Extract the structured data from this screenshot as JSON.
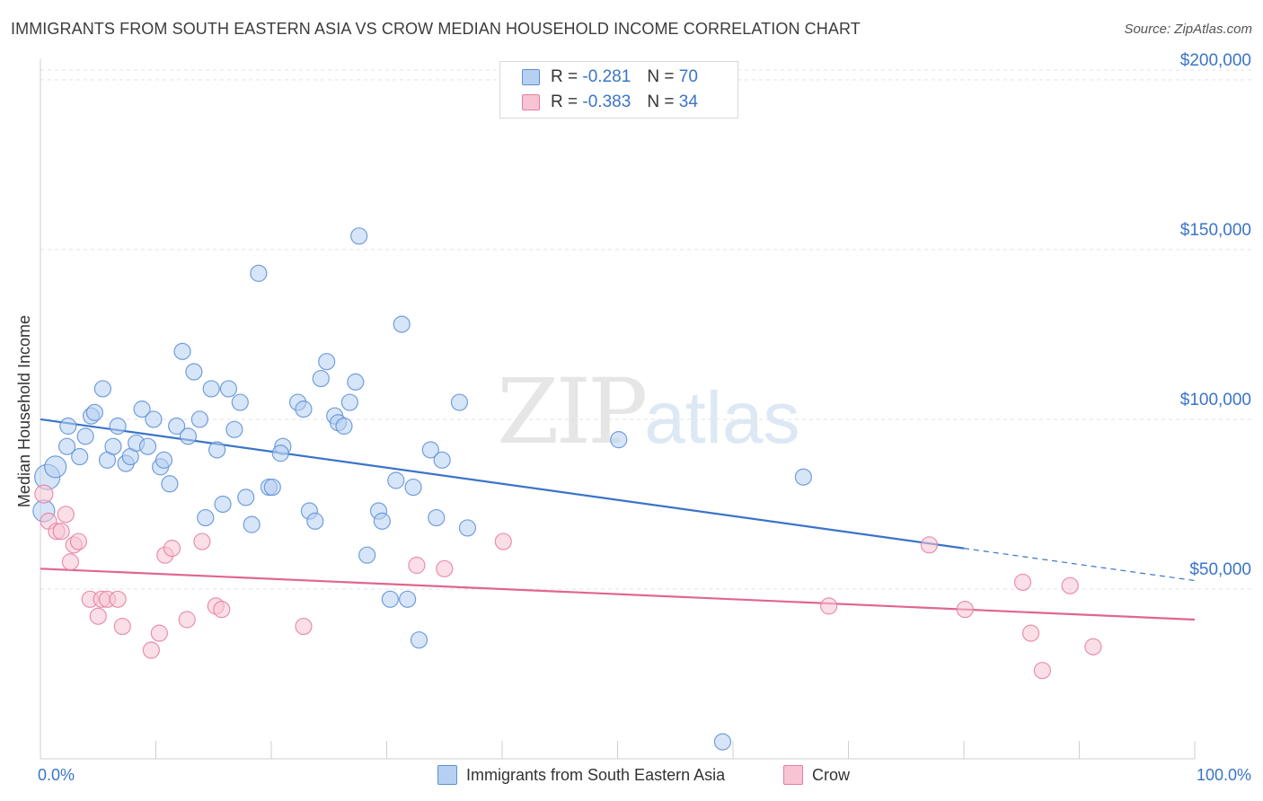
{
  "title": "IMMIGRANTS FROM SOUTH EASTERN ASIA VS CROW MEDIAN HOUSEHOLD INCOME CORRELATION CHART",
  "source": "Source: ZipAtlas.com",
  "watermark": {
    "zip": "ZIP",
    "atlas": "atlas"
  },
  "legend": {
    "r_label": "R =",
    "n_label": "N =",
    "series1": {
      "r": "-0.281",
      "n": "70"
    },
    "series2": {
      "r": "-0.383",
      "n": "34"
    }
  },
  "chart_data": {
    "type": "scatter",
    "title": "IMMIGRANTS FROM SOUTH EASTERN ASIA VS CROW MEDIAN HOUSEHOLD INCOME CORRELATION CHART",
    "xlabel": "",
    "ylabel": "Median Household Income",
    "xlim": [
      0,
      100
    ],
    "ylim": [
      0,
      205000
    ],
    "x_tick_labels": [
      "0.0%",
      "100.0%"
    ],
    "y_ticks": [
      50000,
      100000,
      150000,
      200000
    ],
    "y_tick_labels": [
      "$50,000",
      "$100,000",
      "$150,000",
      "$200,000"
    ],
    "grid": true,
    "colors": {
      "series1": "#5b8fd6",
      "series1_fill": "#b7d0f2",
      "series2": "#e57ea0",
      "series2_fill": "#f7c4d4",
      "trend1": "#3a74c9",
      "trend2": "#e06690"
    },
    "series": [
      {
        "name": "Immigrants from South Eastern Asia",
        "points": [
          [
            0.3,
            73000
          ],
          [
            0.6,
            83000
          ],
          [
            1.3,
            86000
          ],
          [
            2.3,
            92000
          ],
          [
            2.4,
            98000
          ],
          [
            3.4,
            89000
          ],
          [
            3.9,
            95000
          ],
          [
            4.4,
            101000
          ],
          [
            4.7,
            102000
          ],
          [
            5.4,
            109000
          ],
          [
            5.8,
            88000
          ],
          [
            6.3,
            92000
          ],
          [
            6.7,
            98000
          ],
          [
            7.4,
            87000
          ],
          [
            7.8,
            89000
          ],
          [
            8.3,
            93000
          ],
          [
            8.8,
            103000
          ],
          [
            9.3,
            92000
          ],
          [
            9.8,
            100000
          ],
          [
            10.4,
            86000
          ],
          [
            10.7,
            88000
          ],
          [
            11.2,
            81000
          ],
          [
            11.8,
            98000
          ],
          [
            12.3,
            120000
          ],
          [
            12.8,
            95000
          ],
          [
            13.3,
            114000
          ],
          [
            13.8,
            100000
          ],
          [
            14.3,
            71000
          ],
          [
            14.8,
            109000
          ],
          [
            15.3,
            91000
          ],
          [
            15.8,
            75000
          ],
          [
            16.3,
            109000
          ],
          [
            16.8,
            97000
          ],
          [
            17.3,
            105000
          ],
          [
            17.8,
            77000
          ],
          [
            18.3,
            69000
          ],
          [
            18.9,
            143000
          ],
          [
            19.8,
            80000
          ],
          [
            20.1,
            80000
          ],
          [
            21.0,
            92000
          ],
          [
            20.8,
            90000
          ],
          [
            22.3,
            105000
          ],
          [
            22.8,
            103000
          ],
          [
            23.3,
            73000
          ],
          [
            23.8,
            70000
          ],
          [
            24.3,
            112000
          ],
          [
            24.8,
            117000
          ],
          [
            25.5,
            101000
          ],
          [
            25.8,
            99000
          ],
          [
            26.3,
            98000
          ],
          [
            26.8,
            105000
          ],
          [
            27.3,
            111000
          ],
          [
            27.6,
            154000
          ],
          [
            28.3,
            60000
          ],
          [
            29.3,
            73000
          ],
          [
            29.6,
            70000
          ],
          [
            30.3,
            47000
          ],
          [
            30.8,
            82000
          ],
          [
            31.3,
            128000
          ],
          [
            31.8,
            47000
          ],
          [
            32.3,
            80000
          ],
          [
            32.8,
            35000
          ],
          [
            33.8,
            91000
          ],
          [
            34.3,
            71000
          ],
          [
            34.8,
            88000
          ],
          [
            36.3,
            105000
          ],
          [
            37.0,
            68000
          ],
          [
            50.1,
            94000
          ],
          [
            59.1,
            5000
          ],
          [
            66.1,
            83000
          ]
        ]
      },
      {
        "name": "Crow",
        "points": [
          [
            0.3,
            78000
          ],
          [
            0.7,
            70000
          ],
          [
            1.4,
            67000
          ],
          [
            1.8,
            67000
          ],
          [
            2.2,
            72000
          ],
          [
            2.6,
            58000
          ],
          [
            2.9,
            63000
          ],
          [
            3.3,
            64000
          ],
          [
            4.3,
            47000
          ],
          [
            5.0,
            42000
          ],
          [
            5.3,
            47000
          ],
          [
            5.8,
            47000
          ],
          [
            6.7,
            47000
          ],
          [
            7.1,
            39000
          ],
          [
            9.6,
            32000
          ],
          [
            10.3,
            37000
          ],
          [
            10.8,
            60000
          ],
          [
            11.4,
            62000
          ],
          [
            12.7,
            41000
          ],
          [
            14.0,
            64000
          ],
          [
            15.2,
            45000
          ],
          [
            15.7,
            44000
          ],
          [
            22.8,
            39000
          ],
          [
            32.6,
            57000
          ],
          [
            35.0,
            56000
          ],
          [
            40.1,
            64000
          ],
          [
            68.3,
            45000
          ],
          [
            77.0,
            63000
          ],
          [
            80.1,
            44000
          ],
          [
            85.1,
            52000
          ],
          [
            85.8,
            37000
          ],
          [
            86.8,
            26000
          ],
          [
            89.2,
            51000
          ],
          [
            91.2,
            33000
          ]
        ]
      }
    ],
    "trend_lines": [
      {
        "series": "Immigrants from South Eastern Asia",
        "x": [
          0,
          80
        ],
        "y": [
          100000,
          62000
        ],
        "dashed_extension": {
          "x": [
            80,
            100
          ],
          "y": [
            62000,
            52500
          ]
        }
      },
      {
        "series": "Crow",
        "x": [
          0,
          100
        ],
        "y": [
          56000,
          41000
        ]
      }
    ]
  }
}
